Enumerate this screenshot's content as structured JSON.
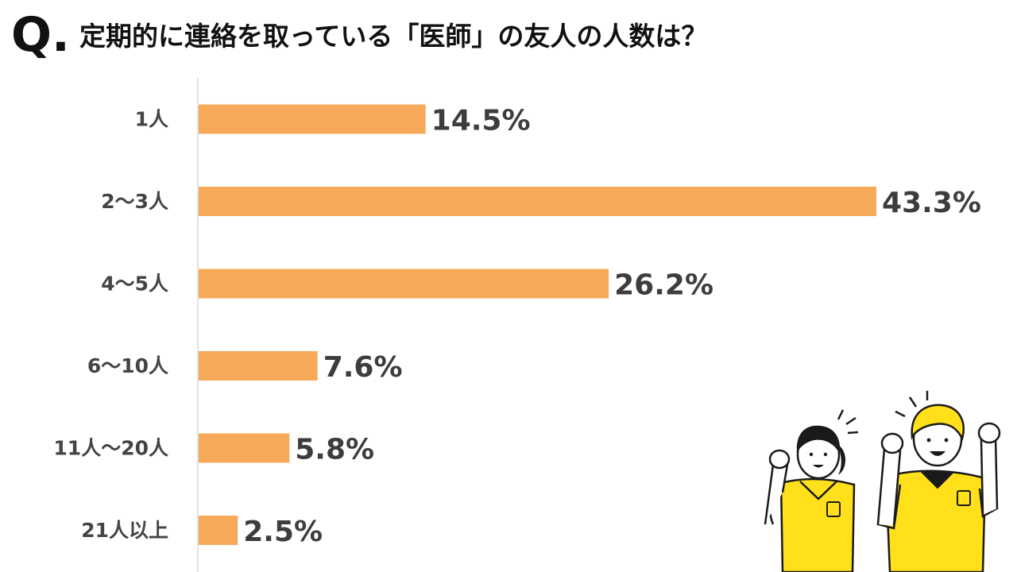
{
  "title": {
    "prefix": "Q.",
    "text": "定期的に連絡を取っている「医師」の友人の人数は？"
  },
  "chart_data": {
    "type": "bar",
    "orientation": "horizontal",
    "categories": [
      "1人",
      "2〜3人",
      "4〜5人",
      "6〜10人",
      "11人〜20人",
      "21人以上"
    ],
    "values": [
      14.5,
      43.3,
      26.2,
      7.6,
      5.8,
      2.5
    ],
    "value_labels": [
      "14.5%",
      "43.3%",
      "26.2%",
      "7.6%",
      "5.8%",
      "2.5%"
    ],
    "unit": "%",
    "xlim": [
      0,
      43.3
    ],
    "grid": false,
    "legend": "none",
    "bar_color": "#f7a95a",
    "axis_color": "#d9d9d9"
  },
  "colors": {
    "shirt": "#ffe01a",
    "outline": "#1a1a1a",
    "hair": "#1a1a1a",
    "hair_blond": "#ffe01a"
  }
}
